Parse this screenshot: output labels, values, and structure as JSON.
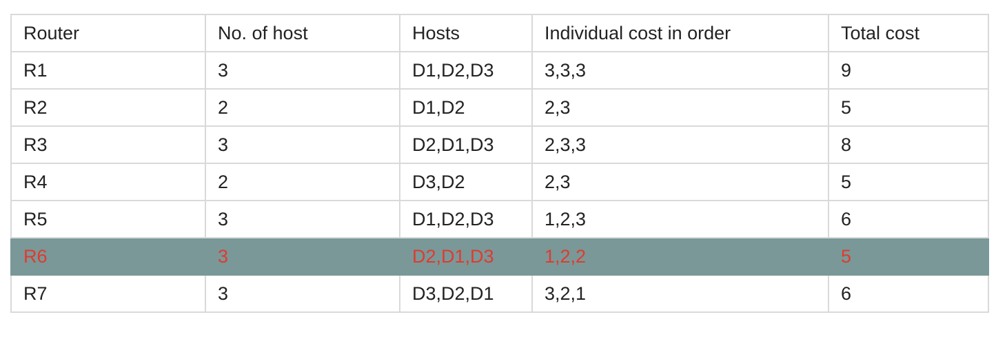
{
  "table": {
    "headers": [
      "Router",
      "No. of host",
      "Hosts",
      "Individual cost in order",
      "Total cost"
    ],
    "rows": [
      [
        "R1",
        "3",
        "D1,D2,D3",
        "3,3,3",
        "9"
      ],
      [
        "R2",
        "2",
        "D1,D2",
        "2,3",
        "5"
      ],
      [
        "R3",
        "3",
        "D2,D1,D3",
        "2,3,3",
        "8"
      ],
      [
        "R4",
        "2",
        "D3,D2",
        "2,3",
        "5"
      ],
      [
        "R5",
        "3",
        "D1,D2,D3",
        "1,2,3",
        "6"
      ],
      [
        "R6",
        "3",
        "D2,D1,D3",
        "1,2,2",
        "5"
      ],
      [
        "R7",
        "3",
        "D3,D2,D1",
        "3,2,1",
        "6"
      ]
    ],
    "highlighted_row": "R6",
    "highlight_bg_color": "#7a9898",
    "highlight_text_color": "#e03a2f"
  }
}
